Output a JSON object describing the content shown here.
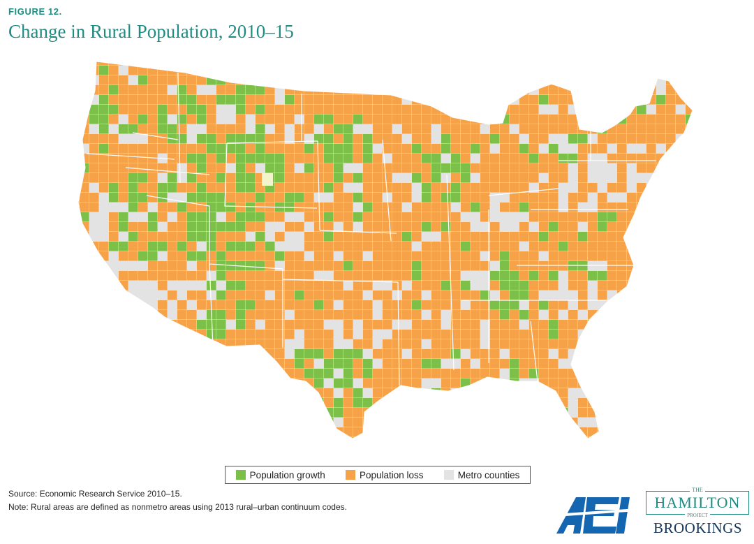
{
  "figure": {
    "label": "FIGURE 12.",
    "title": "Change in Rural Population, 2010–15"
  },
  "colors": {
    "growth": "#7cc04a",
    "loss": "#f6a248",
    "metro": "#e3e3e3",
    "unknown": "#f3f3cc",
    "border": "#ffffff",
    "accent": "#1f8c84"
  },
  "legend": {
    "items": [
      {
        "label": "Population growth",
        "color": "#7cc04a"
      },
      {
        "label": "Population loss",
        "color": "#f6a248"
      },
      {
        "label": "Metro counties",
        "color": "#e3e3e3"
      }
    ]
  },
  "footnotes": {
    "source": "Source: Economic Research Service 2010–15.",
    "note": "Note: Rural areas are defined as nonmetro areas using 2013 rural–urban continuum codes."
  },
  "logos": {
    "aei": "AEI",
    "hamilton_the": "THE",
    "hamilton_name": "HAMILTON",
    "hamilton_project": "PROJECT",
    "brookings": "BROOKINGS"
  }
}
